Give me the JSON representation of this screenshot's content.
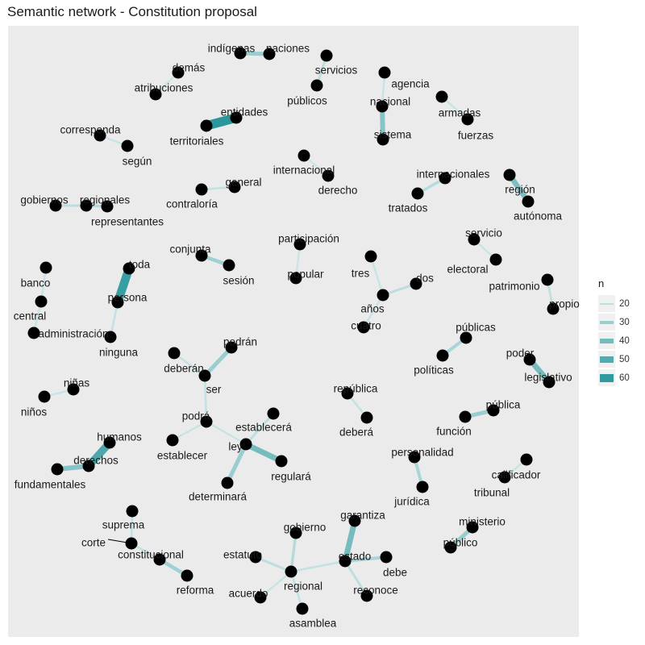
{
  "title": "Semantic network - Constitution proposal",
  "colors": {
    "panel": "#ebebeb",
    "node": "#000000",
    "edge_low": "#cde6e8",
    "edge_high": "#1e9296",
    "text": "#1a1a1a"
  },
  "legend": {
    "title": "n",
    "entries": [
      {
        "label": "20",
        "value": 20
      },
      {
        "label": "30",
        "value": 30
      },
      {
        "label": "40",
        "value": 40
      },
      {
        "label": "50",
        "value": 50
      },
      {
        "label": "60",
        "value": 60
      }
    ]
  },
  "chart_data": {
    "type": "network",
    "title": "Semantic network - Constitution proposal",
    "edge_weight_label": "n",
    "legend_placement": "right",
    "weight_range": [
      15,
      65
    ],
    "nodes": [
      {
        "id": "indígenas",
        "label": "indígenas"
      },
      {
        "id": "naciones",
        "label": "naciones"
      },
      {
        "id": "servicios",
        "label": "servicios"
      },
      {
        "id": "públicos",
        "label": "públicos"
      },
      {
        "id": "demás",
        "label": "demás"
      },
      {
        "id": "atribuciones",
        "label": "atribuciones"
      },
      {
        "id": "agencia",
        "label": "agencia"
      },
      {
        "id": "nacional",
        "label": "nacional"
      },
      {
        "id": "sistema",
        "label": "sistema"
      },
      {
        "id": "armadas",
        "label": "armadas"
      },
      {
        "id": "fuerzas",
        "label": "fuerzas"
      },
      {
        "id": "entidades",
        "label": "entidades"
      },
      {
        "id": "territoriales",
        "label": "territoriales"
      },
      {
        "id": "corresponda",
        "label": "corresponda"
      },
      {
        "id": "según",
        "label": "según"
      },
      {
        "id": "internacional",
        "label": "internacional"
      },
      {
        "id": "derecho",
        "label": "derecho"
      },
      {
        "id": "general",
        "label": "general"
      },
      {
        "id": "contraloría",
        "label": "contraloría"
      },
      {
        "id": "internacionales",
        "label": "internacionales"
      },
      {
        "id": "tratados",
        "label": "tratados"
      },
      {
        "id": "región",
        "label": "región"
      },
      {
        "id": "autónoma",
        "label": "autónoma"
      },
      {
        "id": "gobiernos",
        "label": "gobiernos"
      },
      {
        "id": "regionales",
        "label": "regionales"
      },
      {
        "id": "representantes",
        "label": "representantes"
      },
      {
        "id": "servicio",
        "label": "servicio"
      },
      {
        "id": "electoral",
        "label": "electoral"
      },
      {
        "id": "conjunta",
        "label": "conjunta"
      },
      {
        "id": "sesión",
        "label": "sesión"
      },
      {
        "id": "participación",
        "label": "participación"
      },
      {
        "id": "popular",
        "label": "popular"
      },
      {
        "id": "toda",
        "label": "toda"
      },
      {
        "id": "persona",
        "label": "persona"
      },
      {
        "id": "ninguna",
        "label": "ninguna"
      },
      {
        "id": "banco",
        "label": "banco"
      },
      {
        "id": "central",
        "label": "central"
      },
      {
        "id": "administración",
        "label": "administración"
      },
      {
        "id": "tres",
        "label": "tres"
      },
      {
        "id": "dos",
        "label": "dos"
      },
      {
        "id": "años",
        "label": "años"
      },
      {
        "id": "cuatro",
        "label": "cuatro"
      },
      {
        "id": "patrimonio",
        "label": "patrimonio"
      },
      {
        "id": "propio",
        "label": "propio"
      },
      {
        "id": "públicas",
        "label": "públicas"
      },
      {
        "id": "políticas",
        "label": "políticas"
      },
      {
        "id": "poder",
        "label": "poder"
      },
      {
        "id": "legislativo",
        "label": "legislativo"
      },
      {
        "id": "podrán",
        "label": "podrán"
      },
      {
        "id": "deberán",
        "label": "deberán"
      },
      {
        "id": "ser",
        "label": "ser"
      },
      {
        "id": "podrá",
        "label": "podrá"
      },
      {
        "id": "establecer",
        "label": "establecer"
      },
      {
        "id": "establecerá",
        "label": "establecerá"
      },
      {
        "id": "ley",
        "label": "ley"
      },
      {
        "id": "regulará",
        "label": "regulará"
      },
      {
        "id": "determinará",
        "label": "determinará"
      },
      {
        "id": "república",
        "label": "república"
      },
      {
        "id": "deberá",
        "label": "deberá"
      },
      {
        "id": "pública",
        "label": "pública"
      },
      {
        "id": "función",
        "label": "función"
      },
      {
        "id": "niñas",
        "label": "niñas"
      },
      {
        "id": "niños",
        "label": "niños"
      },
      {
        "id": "humanos",
        "label": "humanos"
      },
      {
        "id": "derechos",
        "label": "derechos"
      },
      {
        "id": "fundamentales",
        "label": "fundamentales"
      },
      {
        "id": "personalidad",
        "label": "personalidad"
      },
      {
        "id": "jurídica",
        "label": "jurídica"
      },
      {
        "id": "calificador",
        "label": "calificador"
      },
      {
        "id": "tribunal",
        "label": "tribunal"
      },
      {
        "id": "suprema",
        "label": "suprema"
      },
      {
        "id": "corte",
        "label": "corte"
      },
      {
        "id": "constitucional",
        "label": "constitucional"
      },
      {
        "id": "reforma",
        "label": "reforma"
      },
      {
        "id": "ministerio",
        "label": "ministerio"
      },
      {
        "id": "público",
        "label": "público"
      },
      {
        "id": "gobierno",
        "label": "gobierno"
      },
      {
        "id": "estatuto",
        "label": "estatuto"
      },
      {
        "id": "regional",
        "label": "regional"
      },
      {
        "id": "acuerdo",
        "label": "acuerdo"
      },
      {
        "id": "asamblea",
        "label": "asamblea"
      },
      {
        "id": "garantiza",
        "label": "garantiza"
      },
      {
        "id": "estado",
        "label": "estado"
      },
      {
        "id": "debe",
        "label": "debe"
      },
      {
        "id": "reconoce",
        "label": "reconoce"
      }
    ],
    "edges": [
      {
        "source": "indígenas",
        "target": "naciones",
        "n": 30
      },
      {
        "source": "servicios",
        "target": "públicos",
        "n": 20
      },
      {
        "source": "demás",
        "target": "atribuciones",
        "n": 16
      },
      {
        "source": "agencia",
        "target": "nacional",
        "n": 17
      },
      {
        "source": "nacional",
        "target": "sistema",
        "n": 35
      },
      {
        "source": "armadas",
        "target": "fuerzas",
        "n": 17
      },
      {
        "source": "entidades",
        "target": "territoriales",
        "n": 62
      },
      {
        "source": "corresponda",
        "target": "según",
        "n": 17
      },
      {
        "source": "internacional",
        "target": "derecho",
        "n": 16
      },
      {
        "source": "general",
        "target": "contraloría",
        "n": 18
      },
      {
        "source": "internacionales",
        "target": "tratados",
        "n": 22
      },
      {
        "source": "región",
        "target": "autónoma",
        "n": 38
      },
      {
        "source": "gobiernos",
        "target": "regionales",
        "n": 20
      },
      {
        "source": "regionales",
        "target": "representantes",
        "n": 22
      },
      {
        "source": "servicio",
        "target": "electoral",
        "n": 17
      },
      {
        "source": "conjunta",
        "target": "sesión",
        "n": 28
      },
      {
        "source": "participación",
        "target": "popular",
        "n": 16
      },
      {
        "source": "toda",
        "target": "persona",
        "n": 58
      },
      {
        "source": "persona",
        "target": "ninguna",
        "n": 18
      },
      {
        "source": "banco",
        "target": "central",
        "n": 17
      },
      {
        "source": "central",
        "target": "administración",
        "n": 17
      },
      {
        "source": "tres",
        "target": "años",
        "n": 17
      },
      {
        "source": "dos",
        "target": "años",
        "n": 20
      },
      {
        "source": "años",
        "target": "cuatro",
        "n": 17
      },
      {
        "source": "patrimonio",
        "target": "propio",
        "n": 19
      },
      {
        "source": "públicas",
        "target": "políticas",
        "n": 25
      },
      {
        "source": "poder",
        "target": "legislativo",
        "n": 40
      },
      {
        "source": "podrán",
        "target": "ser",
        "n": 30
      },
      {
        "source": "deberán",
        "target": "ser",
        "n": 18
      },
      {
        "source": "ser",
        "target": "podrá",
        "n": 18
      },
      {
        "source": "podrá",
        "target": "establecer",
        "n": 17
      },
      {
        "source": "podrá",
        "target": "ley",
        "n": 17
      },
      {
        "source": "establecerá",
        "target": "ley",
        "n": 20
      },
      {
        "source": "ley",
        "target": "regulará",
        "n": 40
      },
      {
        "source": "ley",
        "target": "determinará",
        "n": 30
      },
      {
        "source": "república",
        "target": "deberá",
        "n": 18
      },
      {
        "source": "pública",
        "target": "función",
        "n": 30
      },
      {
        "source": "niñas",
        "target": "niños",
        "n": 17
      },
      {
        "source": "humanos",
        "target": "derechos",
        "n": 52
      },
      {
        "source": "derechos",
        "target": "fundamentales",
        "n": 35
      },
      {
        "source": "personalidad",
        "target": "jurídica",
        "n": 25
      },
      {
        "source": "calificador",
        "target": "tribunal",
        "n": 17
      },
      {
        "source": "suprema",
        "target": "corte",
        "n": 18
      },
      {
        "source": "corte",
        "target": "constitucional",
        "n": 18
      },
      {
        "source": "constitucional",
        "target": "reforma",
        "n": 28
      },
      {
        "source": "ministerio",
        "target": "público",
        "n": 30
      },
      {
        "source": "gobierno",
        "target": "regional",
        "n": 22
      },
      {
        "source": "estatuto",
        "target": "regional",
        "n": 20
      },
      {
        "source": "acuerdo",
        "target": "regional",
        "n": 17
      },
      {
        "source": "asamblea",
        "target": "regional",
        "n": 18
      },
      {
        "source": "regional",
        "target": "estado",
        "n": 18
      },
      {
        "source": "garantiza",
        "target": "estado",
        "n": 40
      },
      {
        "source": "estado",
        "target": "debe",
        "n": 25
      },
      {
        "source": "estado",
        "target": "reconoce",
        "n": 20
      }
    ]
  }
}
